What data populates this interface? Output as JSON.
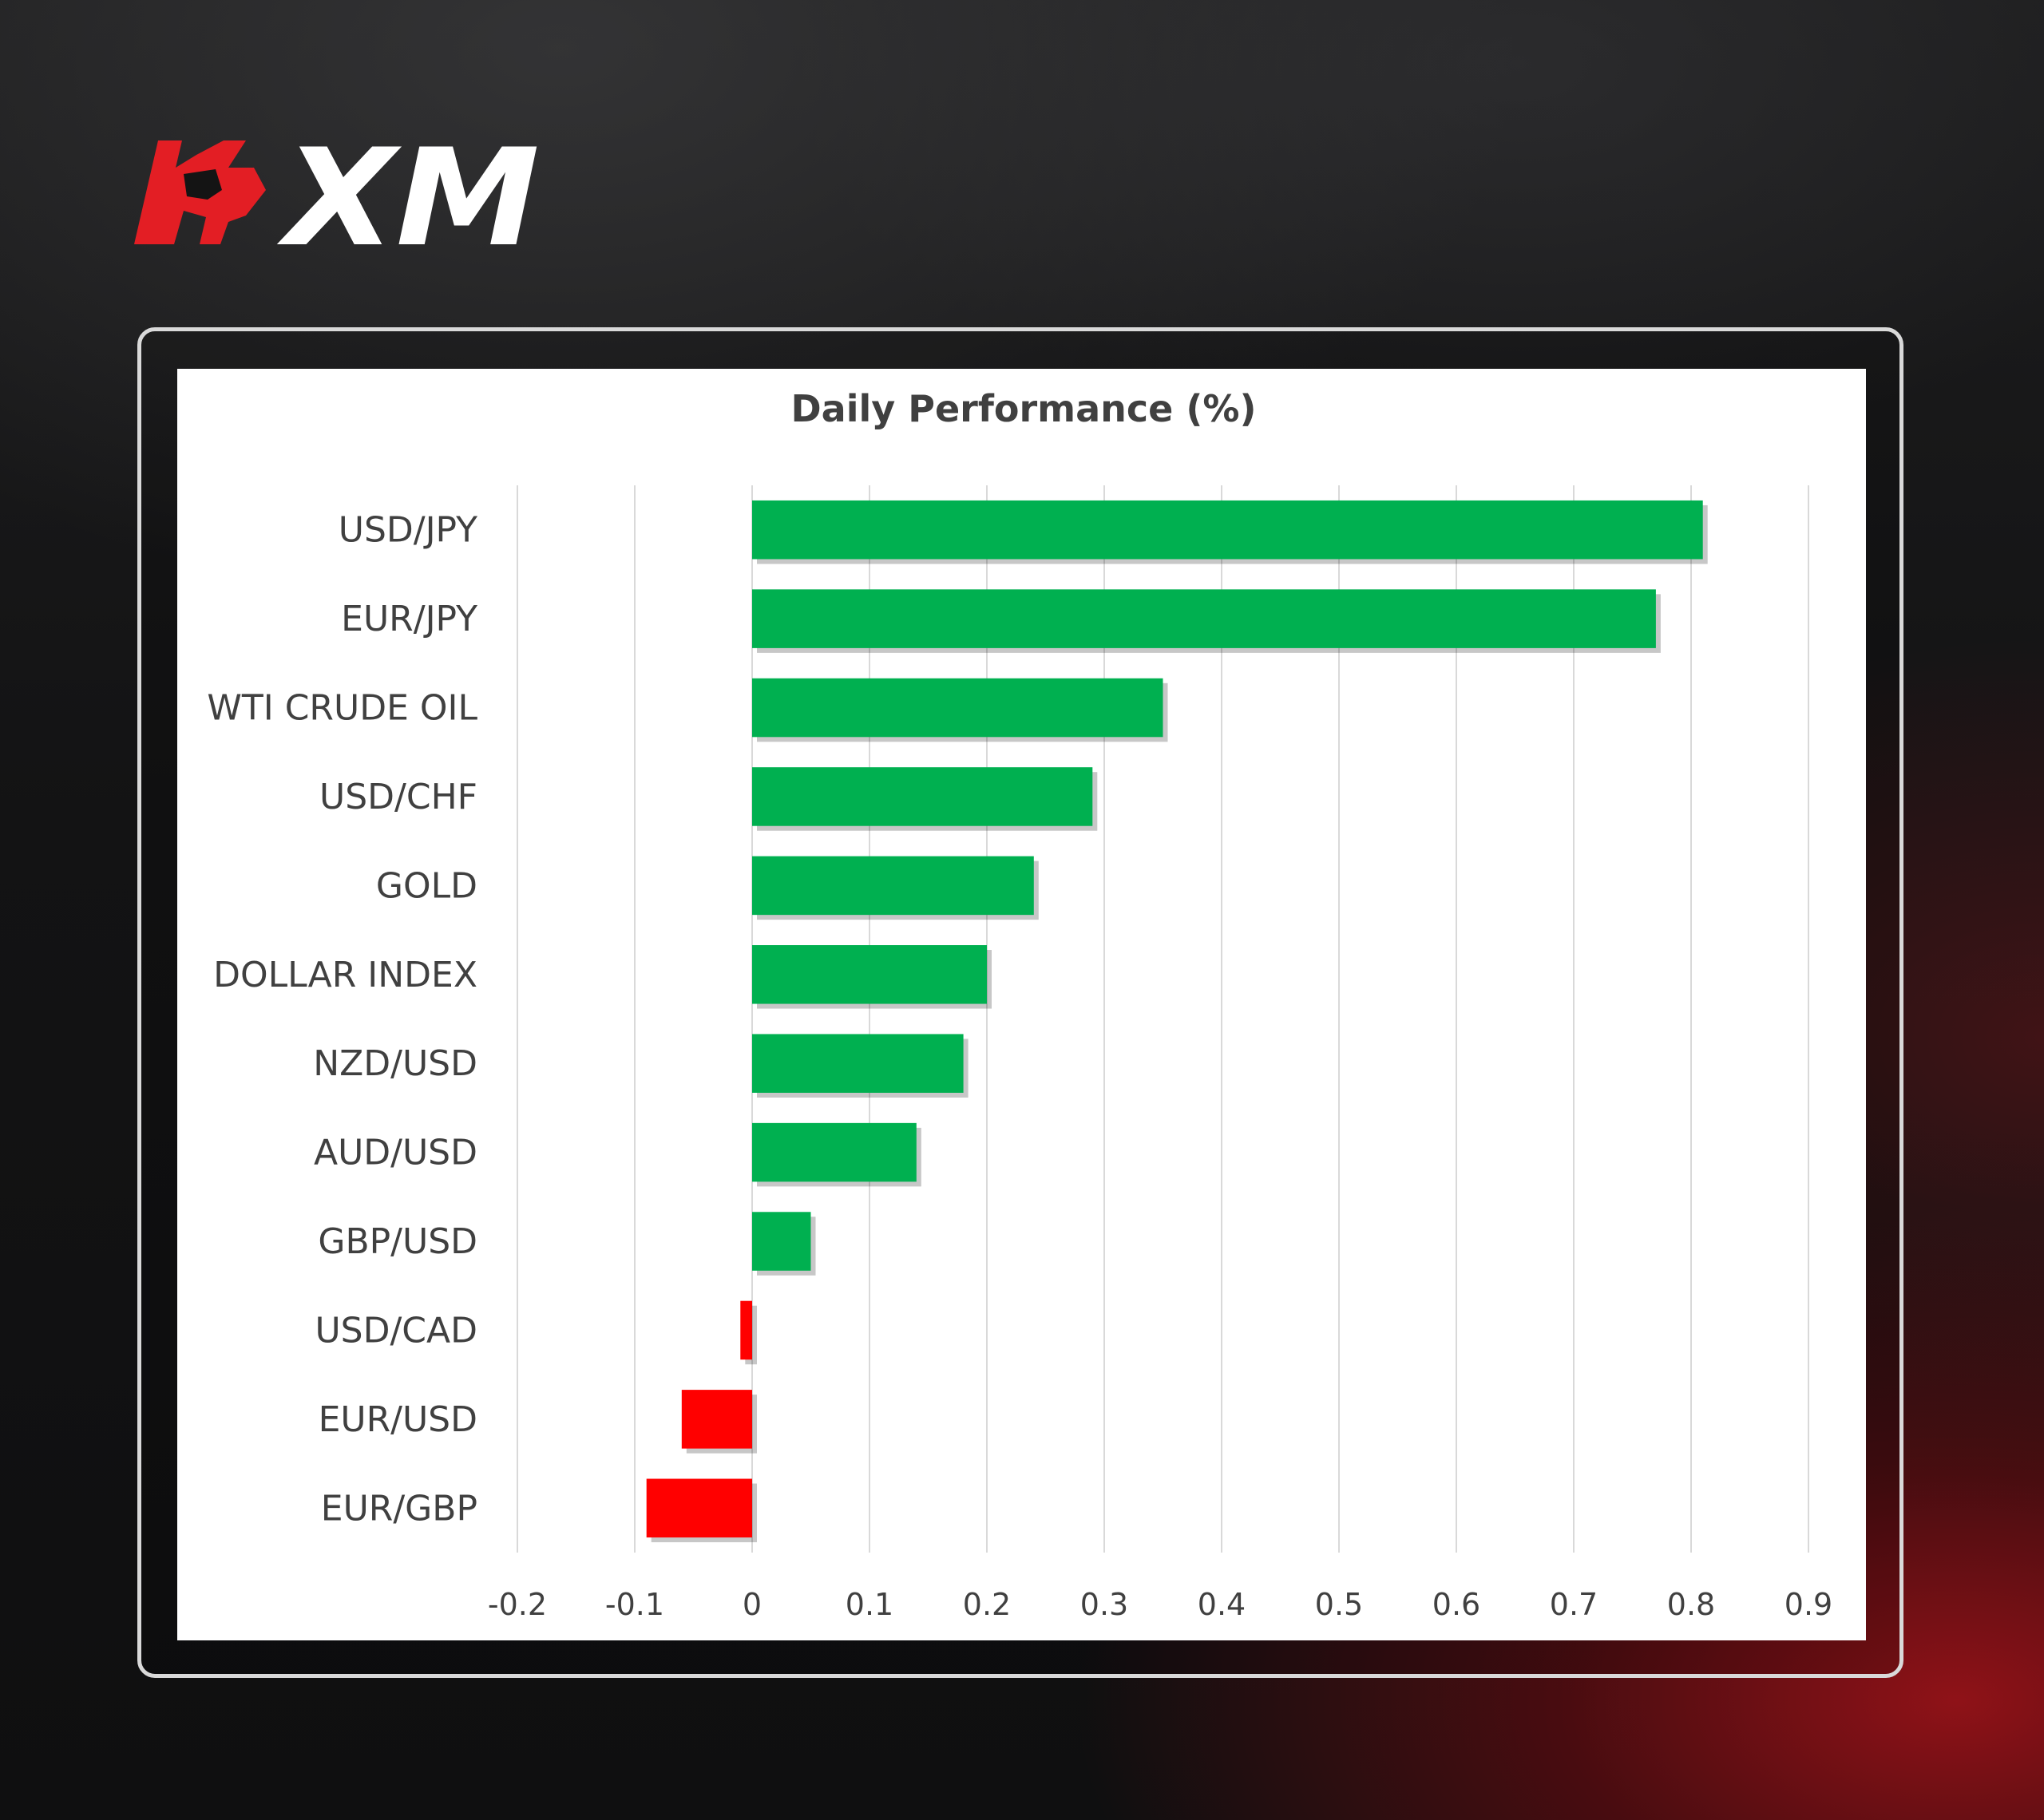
{
  "brand": {
    "logo_text": "XM",
    "icon": "bull-head-icon",
    "accent": "#e31e24"
  },
  "chart_data": {
    "type": "bar",
    "orientation": "horizontal",
    "title": "Daily Performance (%)",
    "xlabel": "",
    "ylabel": "",
    "categories": [
      "USD/JPY",
      "EUR/JPY",
      "WTI CRUDE OIL",
      "USD/CHF",
      "GOLD",
      "DOLLAR INDEX",
      "NZD/USD",
      "AUD/USD",
      "GBP/USD",
      "USD/CAD",
      "EUR/USD",
      "EUR/GBP"
    ],
    "values": [
      0.81,
      0.77,
      0.35,
      0.29,
      0.24,
      0.2,
      0.18,
      0.14,
      0.05,
      -0.01,
      -0.06,
      -0.09
    ],
    "xlim": [
      -0.2,
      0.9
    ],
    "xticks": [
      "-0.2",
      "-0.1",
      "0",
      "0.1",
      "0.2",
      "0.3",
      "0.4",
      "0.5",
      "0.6",
      "0.7",
      "0.8",
      "0.9"
    ],
    "grid": "vertical",
    "legend": "none",
    "colors": {
      "positive": "#00b050",
      "negative": "#ff0000",
      "grid": "#d9d9d9",
      "text": "#404040"
    }
  }
}
